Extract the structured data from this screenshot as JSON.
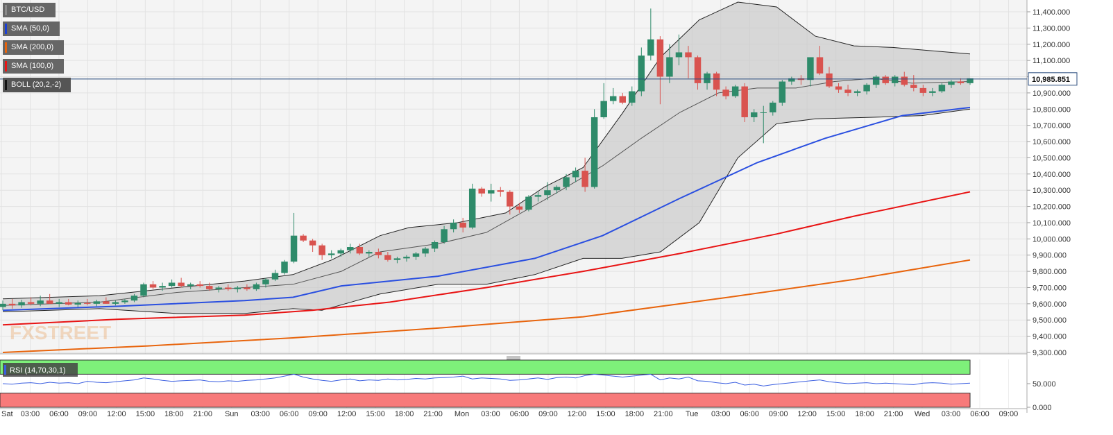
{
  "chart_data": {
    "type": "candlestick",
    "symbol": "BTC/USD",
    "last_price": "10,985.851",
    "legend": [
      {
        "label": "BTC/USD",
        "color": "#888888"
      },
      {
        "label": "SMA (50,0)",
        "color": "#1a3fd6"
      },
      {
        "label": "SMA (200,0)",
        "color": "#e8640c"
      },
      {
        "label": "SMA (100,0)",
        "color": "#e81414"
      },
      {
        "label": "BOLL (20,2,-2)",
        "color": "#111111"
      }
    ],
    "ylim": [
      9300,
      11400
    ],
    "y_ticks": [
      "11,400.000",
      "11,300.000",
      "11,200.000",
      "11,100.000",
      "11,000.000",
      "10,900.000",
      "10,800.000",
      "10,700.000",
      "10,600.000",
      "10,500.000",
      "10,400.000",
      "10,300.000",
      "10,200.000",
      "10,100.000",
      "10,000.000",
      "9,900.000",
      "9,800.000",
      "9,700.000",
      "9,600.000",
      "9,500.000",
      "9,400.000",
      "9,300.000"
    ],
    "x_ticks": [
      "Sat",
      "03:00",
      "06:00",
      "09:00",
      "12:00",
      "15:00",
      "18:00",
      "21:00",
      "Sun",
      "03:00",
      "06:00",
      "09:00",
      "12:00",
      "15:00",
      "18:00",
      "21:00",
      "Mon",
      "03:00",
      "06:00",
      "09:00",
      "12:00",
      "15:00",
      "18:00",
      "21:00",
      "Tue",
      "03:00",
      "06:00",
      "09:00",
      "12:00",
      "15:00",
      "18:00",
      "21:00",
      "Wed",
      "03:00",
      "06:00",
      "09:00"
    ],
    "candles_ohlc": [
      [
        9580,
        9620,
        9560,
        9600
      ],
      [
        9600,
        9630,
        9570,
        9590
      ],
      [
        9590,
        9625,
        9575,
        9610
      ],
      [
        9610,
        9640,
        9590,
        9600
      ],
      [
        9600,
        9650,
        9585,
        9620
      ],
      [
        9620,
        9660,
        9600,
        9600
      ],
      [
        9600,
        9630,
        9580,
        9610
      ],
      [
        9610,
        9630,
        9590,
        9595
      ],
      [
        9595,
        9620,
        9580,
        9605
      ],
      [
        9605,
        9630,
        9590,
        9600
      ],
      [
        9600,
        9625,
        9585,
        9615
      ],
      [
        9615,
        9640,
        9600,
        9600
      ],
      [
        9600,
        9620,
        9590,
        9610
      ],
      [
        9610,
        9630,
        9600,
        9620
      ],
      [
        9620,
        9660,
        9610,
        9650
      ],
      [
        9650,
        9730,
        9640,
        9720
      ],
      [
        9720,
        9740,
        9690,
        9700
      ],
      [
        9700,
        9730,
        9680,
        9710
      ],
      [
        9710,
        9750,
        9700,
        9730
      ],
      [
        9730,
        9760,
        9700,
        9710
      ],
      [
        9710,
        9730,
        9690,
        9720
      ],
      [
        9720,
        9740,
        9700,
        9710
      ],
      [
        9710,
        9730,
        9680,
        9690
      ],
      [
        9690,
        9710,
        9670,
        9700
      ],
      [
        9700,
        9720,
        9680,
        9690
      ],
      [
        9690,
        9710,
        9670,
        9700
      ],
      [
        9700,
        9720,
        9680,
        9690
      ],
      [
        9690,
        9730,
        9680,
        9720
      ],
      [
        9720,
        9760,
        9700,
        9750
      ],
      [
        9750,
        9810,
        9740,
        9790
      ],
      [
        9790,
        9870,
        9780,
        9860
      ],
      [
        9860,
        10160,
        9850,
        10020
      ],
      [
        10020,
        10030,
        9980,
        9990
      ],
      [
        9990,
        10000,
        9920,
        9960
      ],
      [
        9960,
        9970,
        9870,
        9900
      ],
      [
        9900,
        9930,
        9880,
        9910
      ],
      [
        9910,
        9940,
        9890,
        9930
      ],
      [
        9930,
        9970,
        9910,
        9950
      ],
      [
        9950,
        9970,
        9900,
        9910
      ],
      [
        9910,
        9930,
        9890,
        9920
      ],
      [
        9920,
        9940,
        9880,
        9900
      ],
      [
        9900,
        9920,
        9860,
        9870
      ],
      [
        9870,
        9890,
        9850,
        9880
      ],
      [
        9880,
        9900,
        9860,
        9890
      ],
      [
        9890,
        9920,
        9870,
        9910
      ],
      [
        9910,
        9950,
        9890,
        9940
      ],
      [
        9940,
        9990,
        9920,
        9980
      ],
      [
        9980,
        10080,
        9970,
        10060
      ],
      [
        10060,
        10120,
        10040,
        10100
      ],
      [
        10100,
        10130,
        10040,
        10070
      ],
      [
        10070,
        10340,
        10060,
        10310
      ],
      [
        10310,
        10320,
        10260,
        10280
      ],
      [
        10280,
        10340,
        10230,
        10300
      ],
      [
        10300,
        10320,
        10260,
        10290
      ],
      [
        10290,
        10300,
        10150,
        10200
      ],
      [
        10200,
        10220,
        10160,
        10180
      ],
      [
        10180,
        10270,
        10170,
        10260
      ],
      [
        10260,
        10290,
        10230,
        10270
      ],
      [
        10270,
        10350,
        10240,
        10300
      ],
      [
        10300,
        10330,
        10280,
        10320
      ],
      [
        10320,
        10400,
        10300,
        10380
      ],
      [
        10380,
        10440,
        10350,
        10420
      ],
      [
        10420,
        10500,
        10290,
        10320
      ],
      [
        10320,
        10800,
        10310,
        10750
      ],
      [
        10750,
        10960,
        10740,
        10850
      ],
      [
        10850,
        10930,
        10830,
        10880
      ],
      [
        10880,
        10900,
        10830,
        10840
      ],
      [
        10840,
        10940,
        10820,
        10910
      ],
      [
        10910,
        11180,
        10880,
        11130
      ],
      [
        11130,
        11420,
        11100,
        11230
      ],
      [
        11230,
        11250,
        10830,
        11000
      ],
      [
        11000,
        11200,
        10960,
        11120
      ],
      [
        11120,
        11260,
        11070,
        11150
      ],
      [
        11150,
        11190,
        10990,
        11120
      ],
      [
        11120,
        11130,
        10920,
        10960
      ],
      [
        10960,
        11030,
        10920,
        11020
      ],
      [
        11020,
        11030,
        10880,
        10920
      ],
      [
        10920,
        10940,
        10860,
        10880
      ],
      [
        10880,
        10950,
        10870,
        10940
      ],
      [
        10940,
        10960,
        10720,
        10750
      ],
      [
        10750,
        10800,
        10720,
        10780
      ],
      [
        10780,
        10820,
        10590,
        10780
      ],
      [
        10780,
        10850,
        10760,
        10840
      ],
      [
        10840,
        10980,
        10820,
        10970
      ],
      [
        10970,
        11000,
        10950,
        10990
      ],
      [
        10990,
        11010,
        10950,
        10980
      ],
      [
        10980,
        11120,
        10940,
        11120
      ],
      [
        11120,
        11190,
        11010,
        11020
      ],
      [
        11020,
        11060,
        10930,
        10940
      ],
      [
        10940,
        10960,
        10900,
        10920
      ],
      [
        10920,
        10950,
        10880,
        10900
      ],
      [
        10900,
        10920,
        10880,
        10910
      ],
      [
        10910,
        10960,
        10890,
        10950
      ],
      [
        10950,
        11010,
        10930,
        11000
      ],
      [
        11000,
        11010,
        10950,
        10960
      ],
      [
        10960,
        11010,
        10940,
        11000
      ],
      [
        11000,
        11030,
        10940,
        10950
      ],
      [
        10950,
        11010,
        10910,
        10930
      ],
      [
        10930,
        10950,
        10880,
        10900
      ],
      [
        10900,
        10930,
        10880,
        10910
      ],
      [
        10910,
        10960,
        10900,
        10950
      ],
      [
        10950,
        10980,
        10930,
        10970
      ],
      [
        10970,
        10990,
        10950,
        10960
      ],
      [
        10960,
        10990,
        10950,
        10990
      ]
    ],
    "sma50": [
      [
        0,
        9560
      ],
      [
        0.12,
        9585
      ],
      [
        0.25,
        9620
      ],
      [
        0.3,
        9640
      ],
      [
        0.35,
        9710
      ],
      [
        0.45,
        9770
      ],
      [
        0.55,
        9880
      ],
      [
        0.62,
        10020
      ],
      [
        0.7,
        10250
      ],
      [
        0.78,
        10470
      ],
      [
        0.85,
        10620
      ],
      [
        0.93,
        10760
      ],
      [
        1,
        10810
      ]
    ],
    "sma100": [
      [
        0,
        9470
      ],
      [
        0.12,
        9505
      ],
      [
        0.25,
        9530
      ],
      [
        0.32,
        9560
      ],
      [
        0.4,
        9610
      ],
      [
        0.5,
        9700
      ],
      [
        0.6,
        9800
      ],
      [
        0.7,
        9910
      ],
      [
        0.8,
        10030
      ],
      [
        0.88,
        10140
      ],
      [
        1,
        10290
      ]
    ],
    "sma200": [
      [
        0,
        9300
      ],
      [
        0.15,
        9340
      ],
      [
        0.3,
        9390
      ],
      [
        0.45,
        9450
      ],
      [
        0.6,
        9520
      ],
      [
        0.75,
        9640
      ],
      [
        0.88,
        9750
      ],
      [
        1,
        9870
      ]
    ],
    "boll_upper": [
      [
        0,
        9630
      ],
      [
        0.05,
        9640
      ],
      [
        0.1,
        9650
      ],
      [
        0.18,
        9700
      ],
      [
        0.25,
        9740
      ],
      [
        0.3,
        9780
      ],
      [
        0.34,
        9870
      ],
      [
        0.39,
        10020
      ],
      [
        0.42,
        10070
      ],
      [
        0.47,
        10100
      ],
      [
        0.52,
        10160
      ],
      [
        0.56,
        10320
      ],
      [
        0.6,
        10440
      ],
      [
        0.64,
        10770
      ],
      [
        0.68,
        11120
      ],
      [
        0.72,
        11350
      ],
      [
        0.76,
        11460
      ],
      [
        0.8,
        11430
      ],
      [
        0.84,
        11250
      ],
      [
        0.88,
        11190
      ],
      [
        0.92,
        11180
      ],
      [
        0.96,
        11160
      ],
      [
        1,
        11140
      ]
    ],
    "boll_mid": [
      [
        0,
        9590
      ],
      [
        0.1,
        9610
      ],
      [
        0.18,
        9670
      ],
      [
        0.25,
        9700
      ],
      [
        0.3,
        9720
      ],
      [
        0.35,
        9800
      ],
      [
        0.39,
        9920
      ],
      [
        0.45,
        9970
      ],
      [
        0.5,
        10040
      ],
      [
        0.56,
        10240
      ],
      [
        0.62,
        10450
      ],
      [
        0.66,
        10620
      ],
      [
        0.7,
        10780
      ],
      [
        0.74,
        10900
      ],
      [
        0.78,
        10930
      ],
      [
        0.82,
        10930
      ],
      [
        0.86,
        10970
      ],
      [
        0.9,
        10990
      ],
      [
        0.94,
        10960
      ],
      [
        1,
        10970
      ]
    ],
    "boll_lower": [
      [
        0,
        9550
      ],
      [
        0.1,
        9570
      ],
      [
        0.18,
        9540
      ],
      [
        0.25,
        9540
      ],
      [
        0.3,
        9570
      ],
      [
        0.33,
        9560
      ],
      [
        0.39,
        9660
      ],
      [
        0.45,
        9720
      ],
      [
        0.5,
        9720
      ],
      [
        0.55,
        9780
      ],
      [
        0.6,
        9880
      ],
      [
        0.64,
        9880
      ],
      [
        0.68,
        9920
      ],
      [
        0.72,
        10100
      ],
      [
        0.76,
        10500
      ],
      [
        0.8,
        10710
      ],
      [
        0.84,
        10740
      ],
      [
        0.9,
        10750
      ],
      [
        0.95,
        10760
      ],
      [
        1,
        10800
      ]
    ],
    "rsi": {
      "label": "RSI (14,70,30,1)",
      "y_ticks": [
        "50.000",
        "0.000"
      ],
      "values": [
        50,
        49,
        51,
        52,
        50,
        53,
        51,
        52,
        50,
        55,
        53,
        52,
        54,
        56,
        58,
        62,
        60,
        57,
        55,
        56,
        57,
        58,
        55,
        54,
        56,
        55,
        57,
        58,
        60,
        62,
        66,
        70,
        64,
        60,
        57,
        55,
        58,
        60,
        56,
        58,
        57,
        60,
        58,
        59,
        61,
        60,
        62,
        63,
        64,
        66,
        60,
        62,
        61,
        60,
        57,
        58,
        60,
        62,
        59,
        63,
        64,
        62,
        67,
        70,
        68,
        66,
        64,
        66,
        68,
        70,
        58,
        62,
        60,
        64,
        56,
        55,
        52,
        50,
        53,
        47,
        49,
        45,
        48,
        50,
        52,
        54,
        56,
        58,
        54,
        52,
        50,
        51,
        52,
        50,
        51,
        50,
        49,
        48,
        51,
        52,
        51,
        49,
        50,
        51
      ],
      "overbought": 70,
      "oversold": 30
    }
  }
}
